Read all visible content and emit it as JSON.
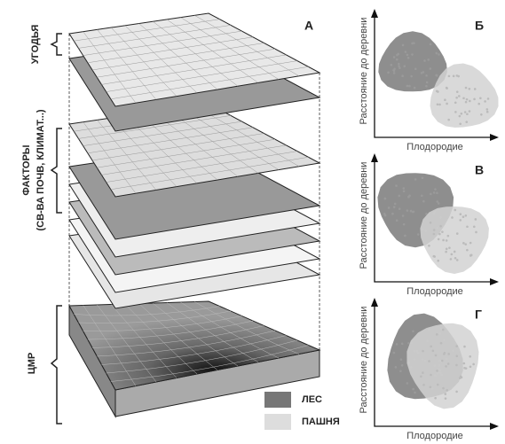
{
  "left_labels": {
    "land_use": "УГОДЬЯ",
    "factors": "ФАКТОРЫ",
    "factors_note": "(СВ-ВА ПОЧВ, КЛИМАТ...)",
    "dem": "ЦМР"
  },
  "main_letter": "А",
  "legend": {
    "forest": "ЛЕС",
    "arable": "ПАШНЯ"
  },
  "panels": [
    {
      "letter": "Б",
      "y_label": "Расстояние до деревни",
      "x_label": "Плодородие"
    },
    {
      "letter": "В",
      "y_label": "Расстояние до деревни",
      "x_label": "Плодородие"
    },
    {
      "letter": "Г",
      "y_label": "Расстояние до деревни",
      "x_label": "Плодородие"
    }
  ]
}
